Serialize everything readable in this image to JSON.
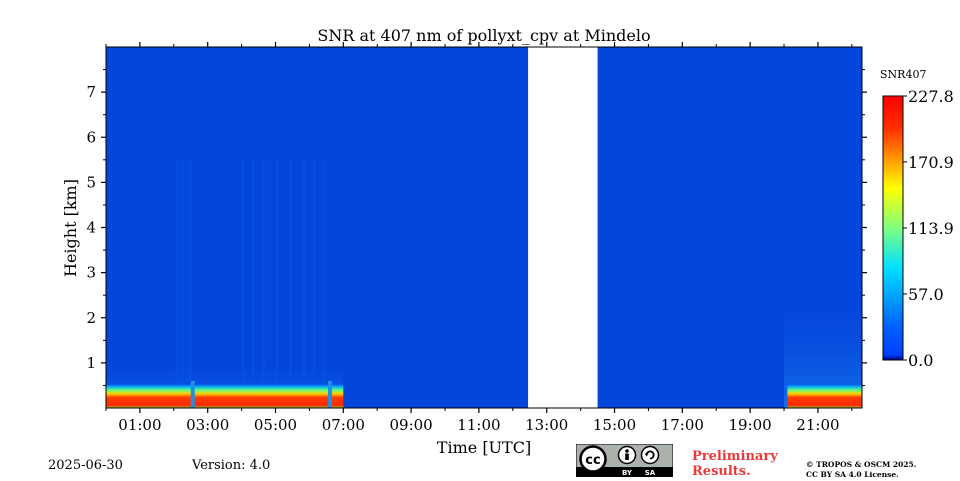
{
  "chart_data": {
    "type": "heatmap",
    "title": "SNR at 407 nm of pollyxt_cpv at Mindelo",
    "xlabel": "Time [UTC]",
    "ylabel": "Height [km]",
    "x_range_hours": [
      0.0,
      22.3
    ],
    "ylim_km": [
      0.0,
      8.0
    ],
    "x_tick_labels": [
      "01:00",
      "03:00",
      "05:00",
      "07:00",
      "09:00",
      "11:00",
      "13:00",
      "15:00",
      "17:00",
      "19:00",
      "21:00"
    ],
    "x_tick_hours": [
      1,
      3,
      5,
      7,
      9,
      11,
      13,
      15,
      17,
      19,
      21
    ],
    "y_ticks": [
      1,
      2,
      3,
      4,
      5,
      6,
      7
    ],
    "colorbar": {
      "label": "SNR407",
      "range": [
        0.0,
        227.8
      ],
      "tick_values": [
        0.0,
        57.0,
        113.9,
        170.9,
        227.8
      ],
      "tick_labels": [
        "0.0",
        "57.0",
        "113.9",
        "170.9",
        "227.8"
      ],
      "colormap": "jet"
    },
    "no_data_periods_hours": [
      [
        12.45,
        14.5
      ]
    ],
    "features": [
      {
        "description": "high SNR near-surface layer",
        "t_start": 0.0,
        "t_end": 7.0,
        "z_base_km": 0.0,
        "z_top_km": 0.55,
        "max_snr": 227.8
      },
      {
        "description": "high SNR near-surface layer",
        "t_start": 20.1,
        "t_end": 22.3,
        "z_base_km": 0.0,
        "z_top_km": 0.55,
        "max_snr": 227.8
      }
    ],
    "background_snr": 0.0
  },
  "footer": {
    "date": "2025-06-30",
    "version": "Version: 4.0",
    "preliminary_line1": "Preliminary",
    "preliminary_line2": "Results.",
    "copyright_line1": "© TROPOS & OSCM 2025.",
    "copyright_line2": "CC BY SA 4.0 License.",
    "cc_by": "BY",
    "cc_sa": "SA"
  },
  "colors": {
    "background_field": "#0445dc",
    "no_data": "#ffffff",
    "preliminary_text": "#e83a3a"
  }
}
